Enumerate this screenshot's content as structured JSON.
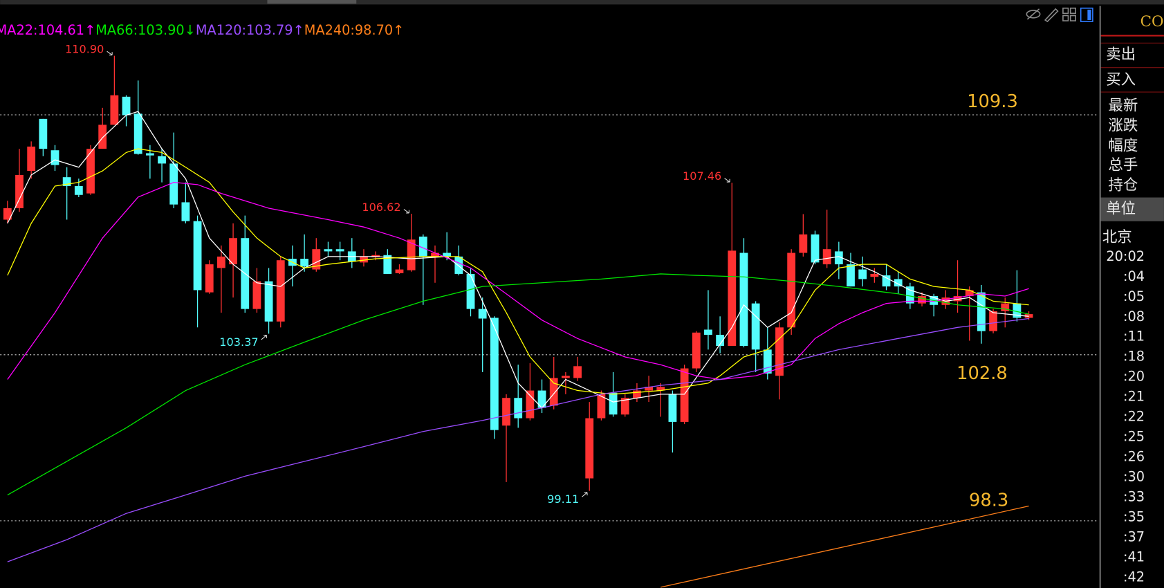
{
  "chart_data": {
    "type": "candlestick",
    "open": [
      106.46,
      106.77,
      107.78,
      109.19,
      108.34,
      107.61,
      107.37,
      107.17,
      108.38,
      109.03,
      109.79,
      109.33,
      108.26,
      108.18,
      107.98,
      106.93,
      106.42,
      104.49,
      105.15,
      105.25,
      105.96,
      104.04,
      104.79,
      103.7,
      105.4,
      105.4,
      105.11,
      105.66,
      105.66,
      105.6,
      105.3,
      105.44,
      105.5,
      105.01,
      105.09,
      106,
      105.46,
      105.56,
      105.46,
      104.99,
      104.04,
      103.8,
      100.88,
      101.63,
      101.08,
      101.83,
      101.42,
      102.17,
      102.17,
      99.45,
      101.08,
      101.77,
      101.18,
      101.63,
      101.83,
      101.83,
      101.73,
      100.98,
      102.43,
      103.48,
      103.34,
      103.04,
      105.56,
      104.19,
      102.94,
      102.23,
      103.54,
      105.56,
      106.06,
      105.25,
      105.6,
      105.25,
      105.11,
      104.91,
      104.95,
      104.85,
      104.65,
      104.19,
      104.39,
      104.15,
      104.25,
      104.39,
      104.49,
      103.44,
      103.98,
      104.19,
      103.8
    ],
    "high": [
      106.97,
      108.38,
      108.58,
      109.19,
      108.48,
      107.88,
      107.57,
      108.48,
      109.49,
      110.9,
      109.83,
      110.23,
      108.48,
      108.38,
      108.82,
      107.47,
      106.57,
      105.36,
      105.76,
      106.36,
      106.57,
      105.15,
      105.15,
      105.46,
      105.76,
      106.06,
      105.96,
      105.86,
      105.86,
      105.96,
      105.66,
      105.6,
      105.66,
      105.25,
      106.62,
      106.06,
      105.76,
      106.12,
      105.76,
      105.15,
      104.35,
      103.84,
      101.73,
      102.53,
      102.57,
      102.13,
      102.74,
      102.33,
      102.74,
      101.52,
      101.83,
      102.33,
      101.73,
      102.03,
      102.23,
      102.03,
      101.83,
      102.53,
      103.44,
      104.55,
      103.84,
      107.46,
      105.96,
      104.25,
      103.54,
      103.68,
      105.66,
      106.61,
      106.16,
      106.73,
      105.86,
      105.56,
      105.46,
      105.15,
      105.25,
      105.05,
      104.75,
      104.49,
      104.45,
      104.55,
      105.36,
      104.65,
      104.69,
      104.04,
      104.35,
      105.09,
      103.98
    ],
    "low": [
      106.36,
      106.67,
      107.57,
      108.18,
      107.78,
      106.46,
      107.07,
      107.13,
      108.38,
      109.03,
      108.99,
      108.22,
      107.57,
      107.47,
      106.77,
      106.36,
      103.54,
      104.45,
      103.94,
      104.35,
      103.94,
      103.94,
      103.37,
      103.54,
      104.65,
      105.05,
      105.05,
      105.46,
      105.36,
      105.15,
      105.19,
      105.36,
      104.99,
      104.99,
      105.05,
      104.15,
      104.75,
      105.36,
      104.95,
      103.84,
      102.33,
      100.52,
      99.35,
      100.82,
      101.02,
      101.22,
      101.32,
      101.73,
      102.09,
      99.11,
      101.02,
      101.12,
      101.12,
      101.52,
      101.52,
      101.12,
      100.15,
      100.92,
      102.33,
      102.94,
      102.84,
      103.04,
      103,
      102.33,
      102.13,
      101.59,
      103.34,
      105.46,
      105.25,
      105.15,
      104.85,
      104.65,
      104.65,
      104.75,
      104.55,
      104.45,
      104.04,
      104.11,
      103.84,
      104.04,
      103.94,
      103.18,
      103.1,
      103.38,
      103.54,
      103.7,
      103.74
    ],
    "close": [
      106.77,
      107.67,
      108.44,
      108.38,
      107.94,
      107.37,
      107.13,
      108.38,
      109.03,
      109.83,
      109.29,
      108.24,
      108.2,
      107.98,
      106.87,
      106.42,
      104.55,
      105.25,
      105.46,
      105.96,
      104.04,
      104.79,
      103.7,
      105.36,
      105.21,
      105.19,
      105.66,
      105.6,
      105.6,
      105.32,
      105.46,
      105.5,
      104.99,
      105.11,
      105.92,
      105.46,
      105.56,
      105.46,
      104.99,
      104.04,
      103.78,
      100.76,
      101.63,
      101.08,
      101.83,
      101.36,
      102.17,
      102.23,
      102.49,
      101.08,
      101.73,
      101.18,
      101.63,
      101.83,
      101.93,
      101.93,
      100.98,
      102.43,
      103.4,
      103.34,
      103.04,
      105.62,
      103.04,
      102.94,
      102.29,
      103.54,
      105.56,
      106.06,
      105.3,
      105.66,
      105.25,
      104.65,
      104.85,
      104.99,
      104.65,
      104.65,
      104.19,
      104.39,
      104.15,
      104.35,
      104.39,
      104.55,
      103.44,
      103.98,
      104.19,
      103.8,
      103.9
    ],
    "up_color": "#ff3232",
    "down_color": "#54fcfc",
    "ylim": [
      96.48,
      112.25
    ],
    "series": [
      {
        "color": "#ffffff",
        "x": [
          0,
          2,
          4,
          6,
          8,
          10,
          11,
          13,
          15,
          17,
          19,
          21,
          23,
          25,
          27,
          31,
          34,
          37,
          39,
          41,
          43,
          45,
          47,
          49,
          51,
          55,
          57,
          59,
          61,
          62,
          64,
          66,
          68,
          70,
          73,
          76,
          79,
          81,
          83,
          86
        ],
        "values": [
          106.36,
          107.67,
          108.08,
          107.88,
          108.68,
          109.29,
          109.39,
          108.38,
          107.57,
          105.96,
          105.25,
          104.75,
          104.65,
          105.15,
          105.46,
          105.46,
          105.4,
          105.46,
          104.95,
          103.54,
          102.03,
          101.36,
          102.13,
          101.83,
          101.52,
          101.73,
          101.73,
          102.63,
          103.54,
          104.15,
          103.54,
          103.94,
          105.36,
          105.46,
          105.05,
          104.55,
          104.25,
          104.35,
          103.94,
          103.84
        ]
      },
      {
        "color": "#ffff00",
        "x": [
          0,
          2,
          4,
          6,
          8,
          10,
          11,
          13,
          15,
          17,
          19,
          21,
          23,
          25,
          27,
          31,
          35,
          38,
          40,
          42,
          44,
          46,
          48,
          51,
          55,
          57,
          59,
          60,
          62,
          64,
          66,
          68,
          70,
          72,
          74,
          76,
          78,
          81,
          83,
          86
        ],
        "values": [
          104.95,
          106.36,
          107.37,
          107.47,
          107.78,
          108.28,
          108.38,
          108.28,
          107.88,
          107.47,
          106.67,
          105.96,
          105.46,
          105.15,
          105.25,
          105.4,
          105.46,
          105.46,
          105.05,
          103.94,
          102.74,
          102.03,
          101.83,
          101.73,
          101.83,
          101.93,
          102.03,
          102.23,
          102.74,
          102.94,
          103.54,
          104.55,
          105.15,
          105.25,
          105.25,
          104.85,
          104.65,
          104.55,
          104.25,
          104.15
        ]
      },
      {
        "label": "MA22:104.61↑",
        "color": "#ff00ff",
        "x": [
          0,
          4,
          8,
          11,
          14,
          16,
          18,
          22,
          27,
          30,
          33,
          36,
          39,
          42,
          45,
          48,
          52,
          55,
          58,
          60,
          63,
          66,
          68,
          70,
          72,
          74,
          76,
          78,
          80,
          82,
          84,
          86
        ],
        "values": [
          102.13,
          103.94,
          105.96,
          107.07,
          107.47,
          107.41,
          107.17,
          106.77,
          106.46,
          106.26,
          105.96,
          105.56,
          105.15,
          104.45,
          103.74,
          103.24,
          102.74,
          102.53,
          102.23,
          102.13,
          102.23,
          102.53,
          103.24,
          103.64,
          103.94,
          104.19,
          104.25,
          104.25,
          104.35,
          104.45,
          104.39,
          104.59
        ]
      },
      {
        "label": "MA66:103.90↓",
        "color": "#00e600",
        "x": [
          0,
          5,
          10,
          15,
          20,
          25,
          30,
          35,
          40,
          45,
          50,
          55,
          58,
          62,
          66,
          70,
          75,
          80,
          84,
          86
        ],
        "values": [
          99,
          99.91,
          100.82,
          101.83,
          102.53,
          103.14,
          103.74,
          104.25,
          104.65,
          104.75,
          104.85,
          104.99,
          104.95,
          104.91,
          104.79,
          104.65,
          104.45,
          104.15,
          104.04,
          103.9
        ]
      },
      {
        "label": "MA120:103.79↑",
        "color": "#9a4dff",
        "x": [
          0,
          5,
          10,
          15,
          20,
          25,
          30,
          35,
          40,
          45,
          50,
          55,
          60,
          65,
          70,
          75,
          80,
          86
        ],
        "values": [
          97.19,
          97.79,
          98.5,
          99,
          99.51,
          99.91,
          100.31,
          100.72,
          101.02,
          101.36,
          101.73,
          101.97,
          102.13,
          102.53,
          102.94,
          103.24,
          103.54,
          103.78
        ]
      },
      {
        "label": "MA240:98.70↑",
        "color": "#ff7f1a",
        "x": [
          55,
          86
        ],
        "values": [
          96.5,
          98.7
        ]
      }
    ],
    "levels": [
      109.3,
      102.8,
      98.3
    ],
    "level_color": "#f5b82e",
    "high_labels": [
      {
        "value": 110.9,
        "label": "110.90"
      },
      {
        "value": 106.62,
        "label": "106.62"
      },
      {
        "value": 107.46,
        "label": "107.46"
      }
    ],
    "low_labels": [
      {
        "value": 103.37,
        "label": "103.37"
      },
      {
        "value": 99.11,
        "label": "99.11"
      }
    ]
  },
  "panel": {
    "code": "CON",
    "buttons": [
      "卖出",
      "买入"
    ],
    "fields": [
      "最新",
      "涨跌",
      "幅度",
      "总手",
      "持仓",
      "单位"
    ],
    "city": "北京",
    "times": [
      "20:02",
      ":04",
      ":05",
      ":08",
      ":11",
      ":18",
      ":20",
      ":21",
      ":22",
      ":25",
      ":26",
      ":30",
      ":33",
      ":35",
      ":37",
      ":41",
      ":42"
    ]
  }
}
